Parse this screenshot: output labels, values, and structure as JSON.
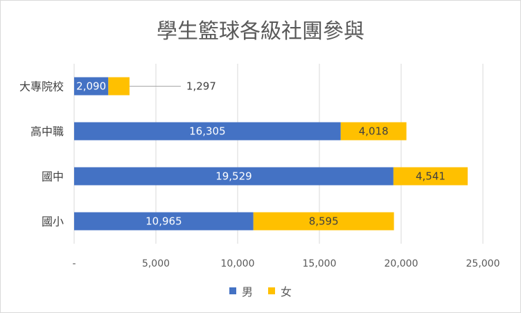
{
  "chart_data": {
    "type": "bar",
    "orientation": "horizontal",
    "stacked": true,
    "title": "學生籃球各級社團參與",
    "categories": [
      "大專院校",
      "高中職",
      "國中",
      "國小"
    ],
    "series": [
      {
        "name": "男",
        "color": "#4472c4",
        "values": [
          2090,
          16305,
          19529,
          10965
        ],
        "labels": [
          "2,090",
          "16,305",
          "19,529",
          "10,965"
        ]
      },
      {
        "name": "女",
        "color": "#ffc000",
        "values": [
          1297,
          4018,
          4541,
          8595
        ],
        "labels": [
          "1,297",
          "4,018",
          "4,541",
          "8,595"
        ]
      }
    ],
    "xlim": [
      0,
      25000
    ],
    "xticks": [
      0,
      5000,
      10000,
      15000,
      20000,
      25000
    ],
    "xtick_labels": [
      "-",
      "5,000",
      "10,000",
      "15,000",
      "20,000",
      "25,000"
    ],
    "grid": true,
    "legend": "bottom"
  }
}
